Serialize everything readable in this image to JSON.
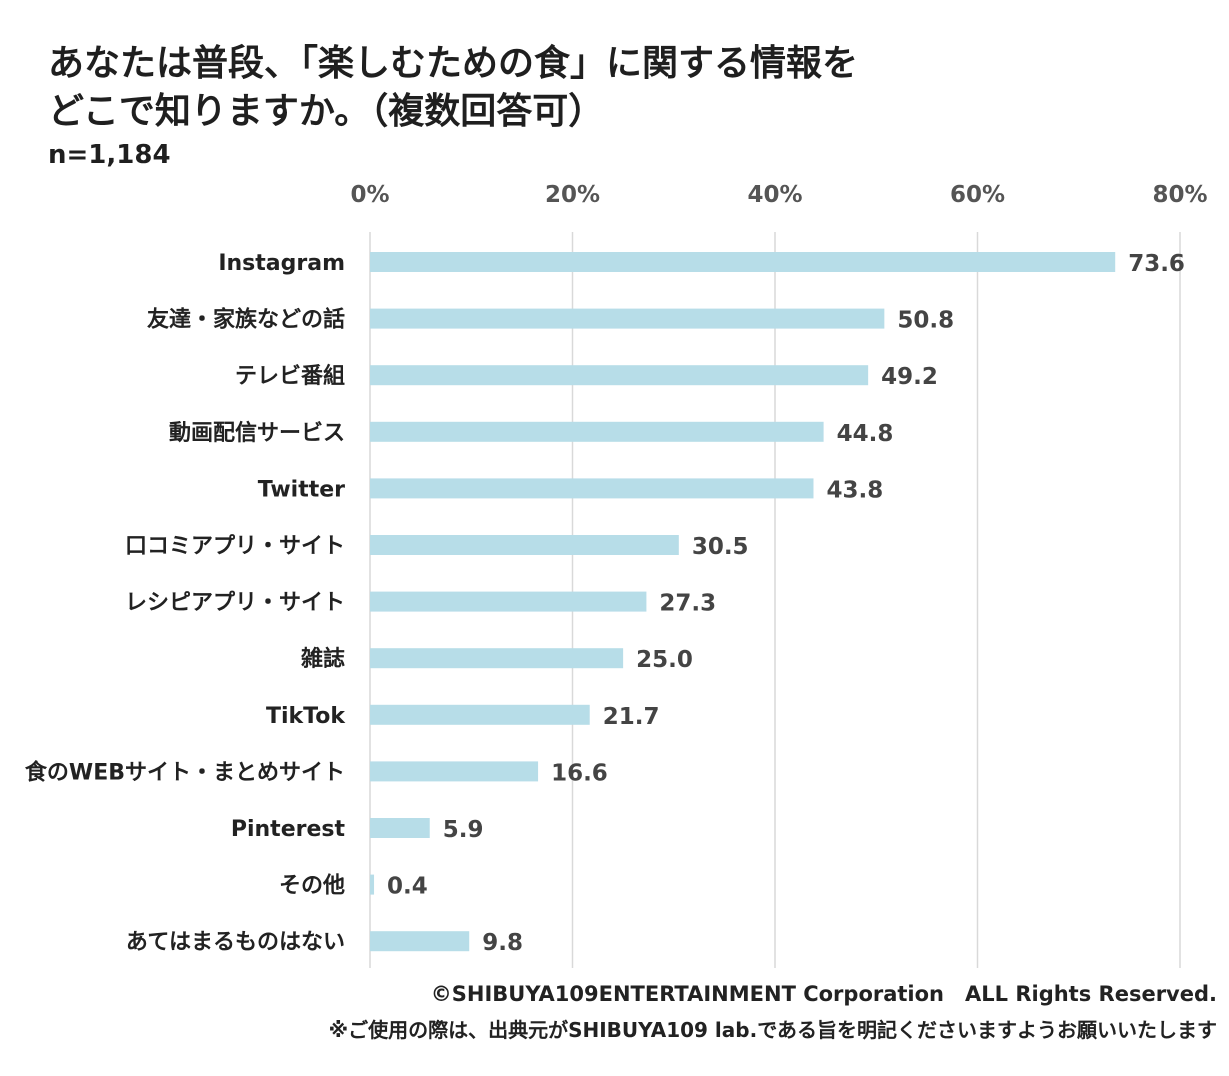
{
  "title_line1": "あなたは普段、「楽しむための食」に関する情報を",
  "title_line2": "どこで知りますか。（複数回答可）",
  "sample_size": "n=1,184",
  "copyright": "©SHIBUYA109ENTERTAINMENT Corporation　ALL Rights Reserved.",
  "note": "※ご使用の際は、出典元がSHIBUYA109 lab.である旨を明記くださいますようお願いいたします",
  "chart_data": {
    "type": "bar",
    "orientation": "horizontal",
    "categories": [
      "Instagram",
      "友達・家族などの話",
      "テレビ番組",
      "動画配信サービス",
      "Twitter",
      "口コミアプリ・サイト",
      "レシピアプリ・サイト",
      "雑誌",
      "TikTok",
      "食のWEBサイト・まとめサイト",
      "Pinterest",
      "その他",
      "あてはまるものはない"
    ],
    "values": [
      73.6,
      50.8,
      49.2,
      44.8,
      43.8,
      30.5,
      27.3,
      25.0,
      21.7,
      16.6,
      5.9,
      0.4,
      9.8
    ],
    "value_labels": [
      "73.6",
      "50.8",
      "49.2",
      "44.8",
      "43.8",
      "30.5",
      "27.3",
      "25.0",
      "21.7",
      "16.6",
      "5.9",
      "0.4",
      "9.8"
    ],
    "xlim": [
      0,
      80
    ],
    "xticks": [
      0,
      20,
      40,
      60,
      80
    ],
    "xtick_labels": [
      "0%",
      "20%",
      "40%",
      "60%",
      "80%"
    ],
    "axis_position": "top",
    "grid": true,
    "bar_color": "#b7dde8",
    "grid_color": "#d9d9d9"
  }
}
